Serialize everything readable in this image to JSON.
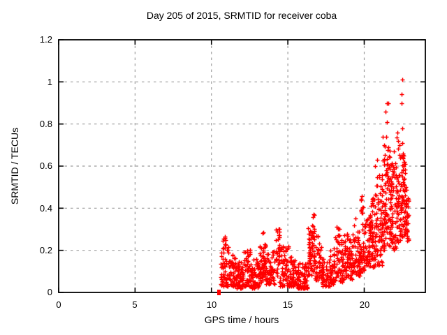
{
  "chart_data": {
    "type": "scatter",
    "title": "Day 205 of 2015, SRMTID for receiver coba",
    "xlabel": "GPS time / hours",
    "ylabel": "SRMTID / TECUs",
    "xlim": [
      0,
      24
    ],
    "ylim": [
      0,
      1.2
    ],
    "xticks": [
      0,
      5,
      10,
      15,
      20
    ],
    "yticks": [
      0,
      0.2,
      0.4,
      0.6,
      0.8,
      1,
      1.2
    ],
    "xtick_labels": [
      "0",
      "5",
      "10",
      "15",
      "20"
    ],
    "ytick_labels": [
      "0",
      "0.2",
      "0.4",
      "0.6",
      "0.8",
      "1",
      "1.2"
    ],
    "grid": true,
    "legend": "none",
    "marker": "plus",
    "marker_color": "#ff0000",
    "grid_color": "#9b9b9b",
    "border_color": "#000000",
    "seed": 1205,
    "axis_marker": {
      "x": 10.49,
      "y": 0.0
    },
    "scatter_segments": [
      [
        10.6,
        11.1,
        60,
        0.03,
        0.27,
        1.7
      ],
      [
        11.1,
        11.6,
        55,
        0.03,
        0.18,
        1.6
      ],
      [
        11.6,
        12.1,
        60,
        0.02,
        0.15,
        1.5
      ],
      [
        12.1,
        12.6,
        55,
        0.03,
        0.21,
        1.6
      ],
      [
        12.6,
        13.15,
        60,
        0.02,
        0.16,
        1.5
      ],
      [
        13.15,
        13.35,
        25,
        0.05,
        0.22,
        1.4
      ],
      [
        13.35,
        13.55,
        35,
        0.07,
        0.3,
        1.2
      ],
      [
        13.55,
        14.15,
        55,
        0.04,
        0.2,
        1.6
      ],
      [
        14.2,
        14.45,
        35,
        0.08,
        0.33,
        1.2
      ],
      [
        14.45,
        15.1,
        65,
        0.03,
        0.22,
        1.7
      ],
      [
        15.1,
        15.6,
        55,
        0.03,
        0.17,
        1.6
      ],
      [
        15.6,
        16.28,
        75,
        0.02,
        0.14,
        1.4
      ],
      [
        16.3,
        16.55,
        40,
        0.08,
        0.31,
        1.3
      ],
      [
        16.55,
        16.75,
        35,
        0.1,
        0.38,
        1.1
      ],
      [
        16.75,
        17.2,
        45,
        0.06,
        0.27,
        1.5
      ],
      [
        17.2,
        17.75,
        50,
        0.03,
        0.17,
        1.5
      ],
      [
        17.75,
        18.1,
        40,
        0.04,
        0.21,
        1.5
      ],
      [
        18.1,
        18.4,
        32,
        0.07,
        0.33,
        1.2
      ],
      [
        18.4,
        18.7,
        35,
        0.05,
        0.25,
        1.4
      ],
      [
        18.7,
        18.95,
        28,
        0.07,
        0.31,
        1.3
      ],
      [
        18.95,
        19.2,
        32,
        0.06,
        0.26,
        1.4
      ],
      [
        19.2,
        19.48,
        32,
        0.08,
        0.35,
        1.2
      ],
      [
        19.48,
        19.78,
        40,
        0.08,
        0.3,
        1.4
      ],
      [
        19.78,
        19.98,
        30,
        0.1,
        0.46,
        1.3
      ],
      [
        19.98,
        20.4,
        55,
        0.1,
        0.36,
        1.4
      ],
      [
        20.4,
        20.78,
        60,
        0.12,
        0.47,
        1.4
      ],
      [
        20.78,
        21.18,
        65,
        0.13,
        0.56,
        1.4
      ],
      [
        21.18,
        21.38,
        32,
        0.2,
        0.74,
        1.5
      ],
      [
        21.38,
        21.68,
        60,
        0.22,
        0.68,
        1.3
      ],
      [
        21.68,
        22.08,
        65,
        0.2,
        0.63,
        1.3
      ],
      [
        22.08,
        22.38,
        50,
        0.24,
        0.7,
        1.3
      ],
      [
        22.38,
        22.68,
        60,
        0.26,
        0.68,
        1.2
      ],
      [
        22.68,
        22.92,
        40,
        0.24,
        0.5,
        1.1
      ]
    ],
    "outlier_points": [
      [
        20.72,
        0.6
      ],
      [
        20.86,
        0.63
      ],
      [
        21.2,
        0.74
      ],
      [
        21.3,
        0.7
      ],
      [
        21.41,
        0.86
      ],
      [
        21.48,
        0.9
      ],
      [
        21.59,
        0.9
      ],
      [
        21.48,
        0.81
      ],
      [
        21.46,
        0.74
      ],
      [
        21.56,
        0.69
      ],
      [
        21.95,
        0.67
      ],
      [
        22.12,
        0.735
      ],
      [
        22.17,
        0.76
      ],
      [
        22.21,
        0.72
      ],
      [
        22.32,
        0.7
      ],
      [
        22.46,
        0.94
      ],
      [
        22.46,
        0.9
      ],
      [
        22.47,
        0.78
      ],
      [
        22.47,
        0.71
      ],
      [
        22.51,
        1.01
      ],
      [
        22.55,
        0.66
      ],
      [
        22.6,
        0.62
      ]
    ]
  }
}
